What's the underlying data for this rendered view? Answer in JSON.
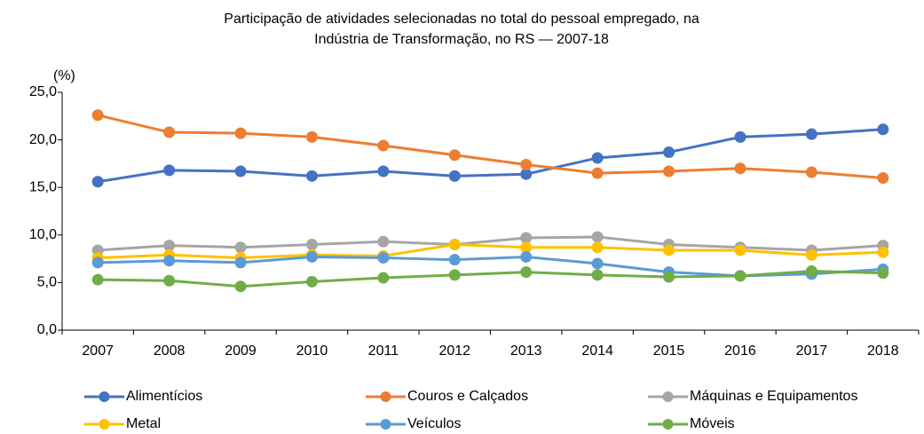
{
  "chart_data": {
    "type": "line",
    "title": [
      "Participação de atividades selecionadas no total do pessoal empregado, na",
      "Indústria de Transformação, no RS — 2007-18"
    ],
    "y_unit_label": "(%)",
    "categories": [
      "2007",
      "2008",
      "2009",
      "2010",
      "2011",
      "2012",
      "2013",
      "2014",
      "2015",
      "2016",
      "2017",
      "2018"
    ],
    "series": [
      {
        "name": "Alimentícios",
        "color": "#4472c4",
        "values": [
          15.6,
          16.8,
          16.7,
          16.2,
          16.7,
          16.2,
          16.4,
          18.1,
          18.7,
          20.3,
          20.6,
          21.1
        ]
      },
      {
        "name": "Couros e Calçados",
        "color": "#ed7d31",
        "values": [
          22.6,
          20.8,
          20.7,
          20.3,
          19.4,
          18.4,
          17.4,
          16.5,
          16.7,
          17.0,
          16.6,
          16.0
        ]
      },
      {
        "name": "Máquinas e Equipamentos",
        "color": "#a5a5a5",
        "values": [
          8.4,
          8.9,
          8.7,
          9.0,
          9.3,
          9.0,
          9.7,
          9.8,
          9.0,
          8.7,
          8.4,
          8.9
        ]
      },
      {
        "name": "Metal",
        "color": "#ffc000",
        "values": [
          7.6,
          7.9,
          7.6,
          7.9,
          7.8,
          9.0,
          8.7,
          8.7,
          8.4,
          8.4,
          7.9,
          8.2
        ]
      },
      {
        "name": "Veículos",
        "color": "#5b9bd5",
        "values": [
          7.1,
          7.3,
          7.1,
          7.7,
          7.6,
          7.4,
          7.7,
          7.0,
          6.1,
          5.7,
          5.9,
          6.4
        ]
      },
      {
        "name": "Móveis",
        "color": "#70ad47",
        "values": [
          5.3,
          5.2,
          4.6,
          5.1,
          5.5,
          5.8,
          6.1,
          5.8,
          5.6,
          5.7,
          6.2,
          6.0
        ]
      }
    ],
    "ylim": [
      0,
      25
    ],
    "yticks": [
      {
        "value": 0,
        "label": "0,0"
      },
      {
        "value": 5,
        "label": "5,0"
      },
      {
        "value": 10,
        "label": "10,0"
      },
      {
        "value": 15,
        "label": "15,0"
      },
      {
        "value": 20,
        "label": "20,0"
      },
      {
        "value": 25,
        "label": "25,0"
      }
    ],
    "grid": false,
    "legend": "bottom"
  }
}
